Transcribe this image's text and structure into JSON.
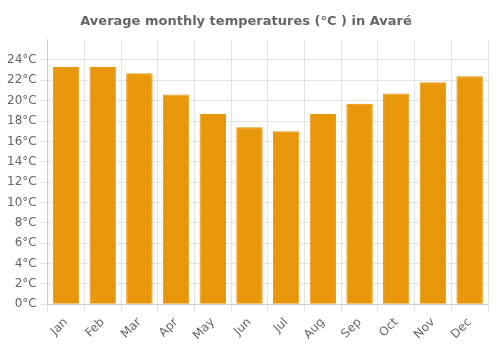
{
  "chart_data": {
    "type": "bar",
    "title": "Average monthly temperatures (°C ) in Avaré",
    "categories": [
      "Jan",
      "Feb",
      "Mar",
      "Apr",
      "May",
      "Jun",
      "Jul",
      "Aug",
      "Sep",
      "Oct",
      "Nov",
      "Dec"
    ],
    "values": [
      23.3,
      23.3,
      22.7,
      20.6,
      18.7,
      17.4,
      17.0,
      18.7,
      19.7,
      20.7,
      21.8,
      22.4
    ],
    "color": "#E8960A",
    "ylim": [
      0,
      26
    ],
    "yticks": [
      {
        "value": 0,
        "label": "0°C"
      },
      {
        "value": 2,
        "label": "2°C"
      },
      {
        "value": 4,
        "label": "4°C"
      },
      {
        "value": 6,
        "label": "6°C"
      },
      {
        "value": 8,
        "label": "8°C"
      },
      {
        "value": 10,
        "label": "10°C"
      },
      {
        "value": 12,
        "label": "12°C"
      },
      {
        "value": 14,
        "label": "14°C"
      },
      {
        "value": 16,
        "label": "16°C"
      },
      {
        "value": 18,
        "label": "18°C"
      },
      {
        "value": 20,
        "label": "20°C"
      },
      {
        "value": 22,
        "label": "22°C"
      },
      {
        "value": 24,
        "label": "24°C"
      }
    ],
    "grid": true
  }
}
